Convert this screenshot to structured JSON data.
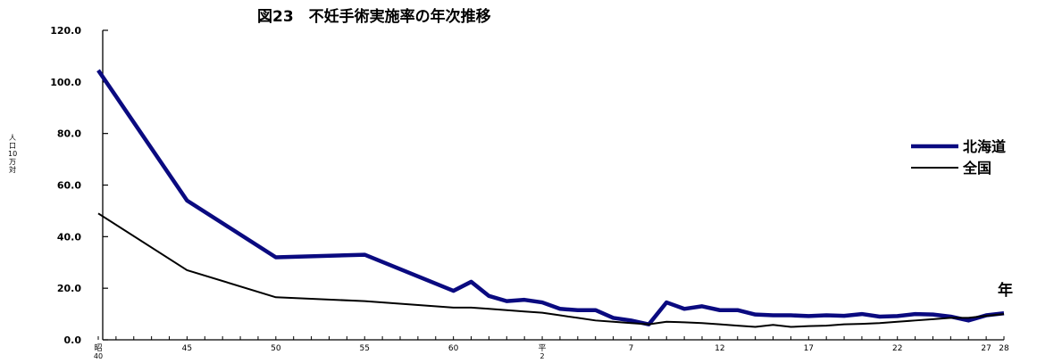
{
  "chart_data": {
    "type": "line",
    "title": "図23　不妊手術実施率の年次推移",
    "ylabel_chars": [
      "人",
      "口",
      "10",
      "万",
      "対"
    ],
    "xlabel": "年",
    "ylim": [
      0,
      120
    ],
    "y_ticks": [
      "0.0",
      "20.0",
      "40.0",
      "60.0",
      "80.0",
      "100.0",
      "120.0"
    ],
    "x_range": [
      1965,
      2016
    ],
    "x_tick_labels": [
      {
        "x": 1965,
        "lines": [
          "昭",
          "40"
        ]
      },
      {
        "x": 1970,
        "lines": [
          "45"
        ]
      },
      {
        "x": 1975,
        "lines": [
          "50"
        ]
      },
      {
        "x": 1980,
        "lines": [
          "55"
        ]
      },
      {
        "x": 1985,
        "lines": [
          "60"
        ]
      },
      {
        "x": 1990,
        "lines": [
          "平",
          "2"
        ]
      },
      {
        "x": 1995,
        "lines": [
          "7"
        ]
      },
      {
        "x": 2000,
        "lines": [
          "12"
        ]
      },
      {
        "x": 2005,
        "lines": [
          "17"
        ]
      },
      {
        "x": 2010,
        "lines": [
          "22"
        ]
      },
      {
        "x": 2015,
        "lines": [
          "27"
        ]
      },
      {
        "x": 2016,
        "lines": [
          "28"
        ]
      }
    ],
    "legend_position": "right",
    "series": [
      {
        "name": "北海道",
        "color": "#0a0a80",
        "x": [
          1965,
          1970,
          1975,
          1980,
          1985,
          1986,
          1987,
          1988,
          1989,
          1990,
          1991,
          1992,
          1993,
          1994,
          1995,
          1996,
          1997,
          1998,
          1999,
          2000,
          2001,
          2002,
          2003,
          2004,
          2005,
          2006,
          2007,
          2008,
          2009,
          2010,
          2011,
          2012,
          2013,
          2014,
          2015,
          2016
        ],
        "values": [
          104.5,
          54,
          32,
          33,
          19,
          22.5,
          17,
          15,
          15.5,
          14.5,
          12,
          11.5,
          11.5,
          8.5,
          7.5,
          6,
          14.5,
          12,
          13,
          11.5,
          11.5,
          9.8,
          9.5,
          9.5,
          9.2,
          9.5,
          9.3,
          10,
          9,
          9.2,
          10,
          9.8,
          9,
          7.5,
          9.5,
          10.3
        ]
      },
      {
        "name": "全国",
        "color": "#000000",
        "x": [
          1965,
          1970,
          1975,
          1980,
          1985,
          1986,
          1987,
          1988,
          1989,
          1990,
          1991,
          1992,
          1993,
          1994,
          1995,
          1996,
          1997,
          1998,
          1999,
          2000,
          2001,
          2002,
          2003,
          2004,
          2005,
          2006,
          2007,
          2008,
          2009,
          2010,
          2011,
          2012,
          2013,
          2014,
          2015,
          2016
        ],
        "values": [
          49,
          27,
          16.5,
          15,
          12.5,
          12.5,
          12,
          11.5,
          11,
          10.5,
          9.5,
          8.5,
          7.5,
          7,
          6.5,
          6,
          7,
          6.8,
          6.5,
          6,
          5.5,
          5,
          5.8,
          5,
          5.3,
          5.5,
          6,
          6.2,
          6.5,
          7,
          7.5,
          8,
          8.5,
          8.5,
          9.3,
          10
        ]
      }
    ]
  }
}
